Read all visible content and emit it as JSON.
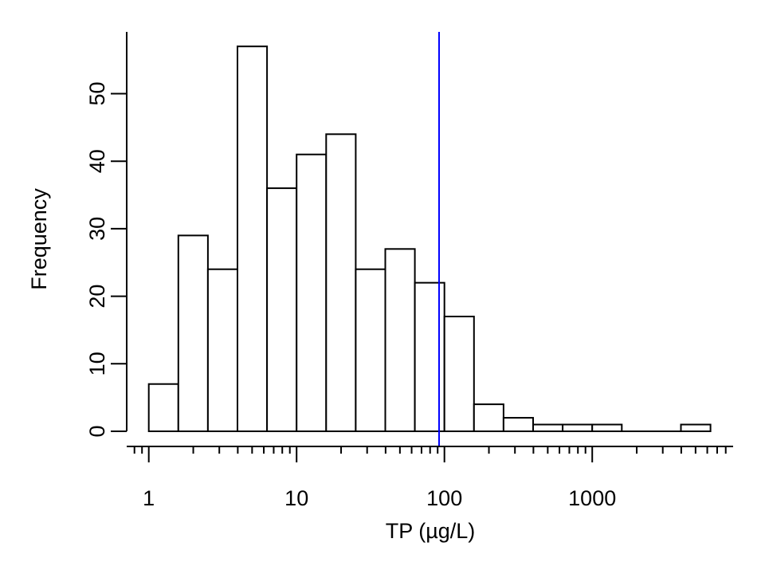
{
  "chart_data": {
    "type": "bar",
    "subtype": "histogram",
    "title": "",
    "xlabel": "TP (µg/L)",
    "ylabel": "Frequency",
    "x_scale": "log10",
    "bin_edges_log10": [
      0.0,
      0.2,
      0.4,
      0.6,
      0.8,
      1.0,
      1.2,
      1.4,
      1.6,
      1.8,
      2.0,
      2.2,
      2.4,
      2.6,
      2.8,
      3.0,
      3.2,
      3.4,
      3.6,
      3.8
    ],
    "categories": [
      "1-1.6",
      "1.6-2.5",
      "2.5-4",
      "4-6.3",
      "6.3-10",
      "10-16",
      "16-25",
      "25-40",
      "40-63",
      "63-100",
      "100-158",
      "158-251",
      "251-398",
      "398-631",
      "631-1000",
      "1000-1585",
      "1585-2512",
      "2512-3981",
      "3981-6310"
    ],
    "values": [
      7,
      29,
      24,
      57,
      36,
      41,
      44,
      24,
      27,
      22,
      17,
      4,
      2,
      1,
      1,
      1,
      0,
      0,
      1
    ],
    "ylim": [
      0,
      57
    ],
    "yticks": [
      0,
      10,
      20,
      30,
      40,
      50
    ],
    "xticks_major": [
      1,
      10,
      100,
      1000
    ],
    "xtick_labels": [
      "1",
      "10",
      "100",
      "1000"
    ],
    "reference_line": {
      "x": 92,
      "orientation": "vertical",
      "color": "#0000ff"
    },
    "bar_fill": "#ffffff",
    "bar_stroke": "#000000",
    "grid": false,
    "legend": null
  }
}
